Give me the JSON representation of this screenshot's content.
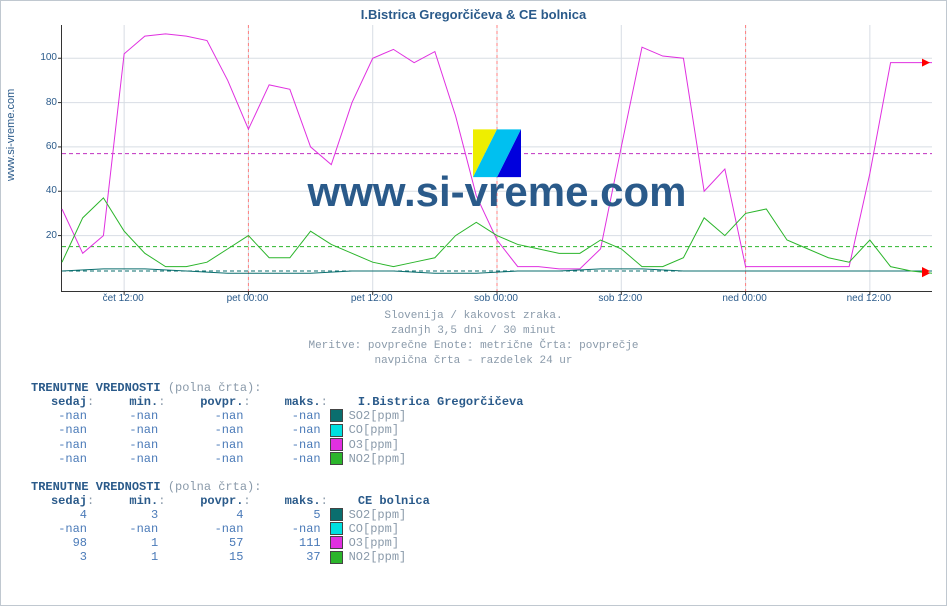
{
  "title": "I.Bistrica Gregorčičeva & CE bolnica",
  "source_label": "www.si-vreme.com",
  "watermark": "www.si-vreme.com",
  "caption": {
    "l1": "Slovenija / kakovost zraka.",
    "l2": "zadnjh 3,5 dni / 30 minut",
    "l3": "Meritve: povprečne  Enote: metrične  Črta: povprečje",
    "l4": "navpična črta - razdelek 24 ur"
  },
  "chart": {
    "type": "line",
    "background_color": "#ffffff",
    "grid_color": "#d8dde4",
    "axis_color": "#333333",
    "xlim": [
      0,
      84
    ],
    "ylim": [
      -5,
      115
    ],
    "yticks": [
      20,
      40,
      60,
      80,
      100
    ],
    "xticks": [
      {
        "pos": 6,
        "label": "čet 12:00"
      },
      {
        "pos": 18,
        "label": "pet 00:00"
      },
      {
        "pos": 30,
        "label": "pet 12:00"
      },
      {
        "pos": 42,
        "label": "sob 00:00"
      },
      {
        "pos": 54,
        "label": "sob 12:00"
      },
      {
        "pos": 66,
        "label": "ned 00:00"
      },
      {
        "pos": 78,
        "label": "ned 12:00"
      }
    ],
    "guide_lines": {
      "so2_avg": {
        "y": 4,
        "color": "#0a6e6e",
        "dash": "4 3"
      },
      "o3_avg": {
        "y": 57,
        "color": "#c030c0",
        "dash": "4 3"
      },
      "no2_avg": {
        "y": 15,
        "color": "#2bb52b",
        "dash": "4 3"
      }
    },
    "series": {
      "so2": {
        "color": "#0a6e6e",
        "line_width": 1,
        "x": [
          0,
          4,
          8,
          12,
          16,
          20,
          24,
          28,
          32,
          36,
          40,
          44,
          48,
          52,
          56,
          60,
          64,
          68,
          72,
          76,
          80,
          84
        ],
        "y": [
          4,
          5,
          5,
          4,
          3,
          3,
          3,
          4,
          4,
          3,
          3,
          4,
          4,
          5,
          5,
          4,
          4,
          4,
          4,
          4,
          4,
          4
        ]
      },
      "o3": {
        "color": "#e030e0",
        "line_width": 1,
        "x": [
          0,
          2,
          4,
          6,
          8,
          10,
          12,
          14,
          16,
          18,
          20,
          22,
          24,
          26,
          28,
          30,
          32,
          34,
          36,
          38,
          40,
          42,
          44,
          46,
          48,
          50,
          52,
          54,
          56,
          58,
          60,
          62,
          64,
          66,
          68,
          70,
          72,
          74,
          76,
          78,
          80,
          82,
          84
        ],
        "y": [
          32,
          12,
          20,
          102,
          110,
          111,
          110,
          108,
          90,
          68,
          88,
          86,
          60,
          52,
          80,
          100,
          104,
          98,
          103,
          74,
          38,
          18,
          6,
          6,
          5,
          5,
          14,
          60,
          105,
          101,
          100,
          40,
          50,
          6,
          6,
          6,
          6,
          6,
          6,
          48,
          98,
          98,
          98
        ]
      },
      "no2": {
        "color": "#2bb52b",
        "line_width": 1,
        "x": [
          0,
          2,
          4,
          6,
          8,
          10,
          12,
          14,
          16,
          18,
          20,
          22,
          24,
          26,
          28,
          30,
          32,
          34,
          36,
          38,
          40,
          42,
          44,
          46,
          48,
          50,
          52,
          54,
          56,
          58,
          60,
          62,
          64,
          66,
          68,
          70,
          72,
          74,
          76,
          78,
          80,
          82,
          84
        ],
        "y": [
          8,
          28,
          37,
          22,
          12,
          6,
          6,
          8,
          14,
          20,
          10,
          10,
          22,
          16,
          12,
          8,
          6,
          8,
          10,
          20,
          26,
          20,
          16,
          14,
          12,
          12,
          18,
          14,
          6,
          6,
          10,
          28,
          20,
          30,
          32,
          18,
          14,
          10,
          8,
          18,
          6,
          4,
          3
        ]
      }
    },
    "day_dividers_x": [
      18,
      42,
      66
    ],
    "arrow_color": "#ff0000"
  },
  "logo_colors": {
    "a": "#eeee00",
    "b": "#00c0f0",
    "c": "#0000dd"
  },
  "tables": [
    {
      "title_main": "TRENUTNE VREDNOSTI",
      "title_suffix": " (polna črta):",
      "headers": {
        "sedaj": "sedaj",
        "min": "min.",
        "povpr": "povpr.",
        "maks": "maks.",
        "loc": "I.Bistrica Gregorčičeva"
      },
      "colon": ":",
      "rows": [
        {
          "sedaj": "-nan",
          "min": "-nan",
          "povpr": "-nan",
          "maks": "-nan",
          "sw": "#0a6e6e",
          "label": "SO2[ppm]"
        },
        {
          "sedaj": "-nan",
          "min": "-nan",
          "povpr": "-nan",
          "maks": "-nan",
          "sw": "#00e0e0",
          "label": "CO[ppm]"
        },
        {
          "sedaj": "-nan",
          "min": "-nan",
          "povpr": "-nan",
          "maks": "-nan",
          "sw": "#e030e0",
          "label": "O3[ppm]"
        },
        {
          "sedaj": "-nan",
          "min": "-nan",
          "povpr": "-nan",
          "maks": "-nan",
          "sw": "#2bb52b",
          "label": "NO2[ppm]"
        }
      ]
    },
    {
      "title_main": "TRENUTNE VREDNOSTI",
      "title_suffix": " (polna črta):",
      "headers": {
        "sedaj": "sedaj",
        "min": "min.",
        "povpr": "povpr.",
        "maks": "maks.",
        "loc": "CE bolnica"
      },
      "colon": ":",
      "rows": [
        {
          "sedaj": "4",
          "min": "3",
          "povpr": "4",
          "maks": "5",
          "sw": "#0a6e6e",
          "label": "SO2[ppm]"
        },
        {
          "sedaj": "-nan",
          "min": "-nan",
          "povpr": "-nan",
          "maks": "-nan",
          "sw": "#00e0e0",
          "label": "CO[ppm]"
        },
        {
          "sedaj": "98",
          "min": "1",
          "povpr": "57",
          "maks": "111",
          "sw": "#e030e0",
          "label": "O3[ppm]"
        },
        {
          "sedaj": "3",
          "min": "1",
          "povpr": "15",
          "maks": "37",
          "sw": "#2bb52b",
          "label": "NO2[ppm]"
        }
      ]
    }
  ]
}
